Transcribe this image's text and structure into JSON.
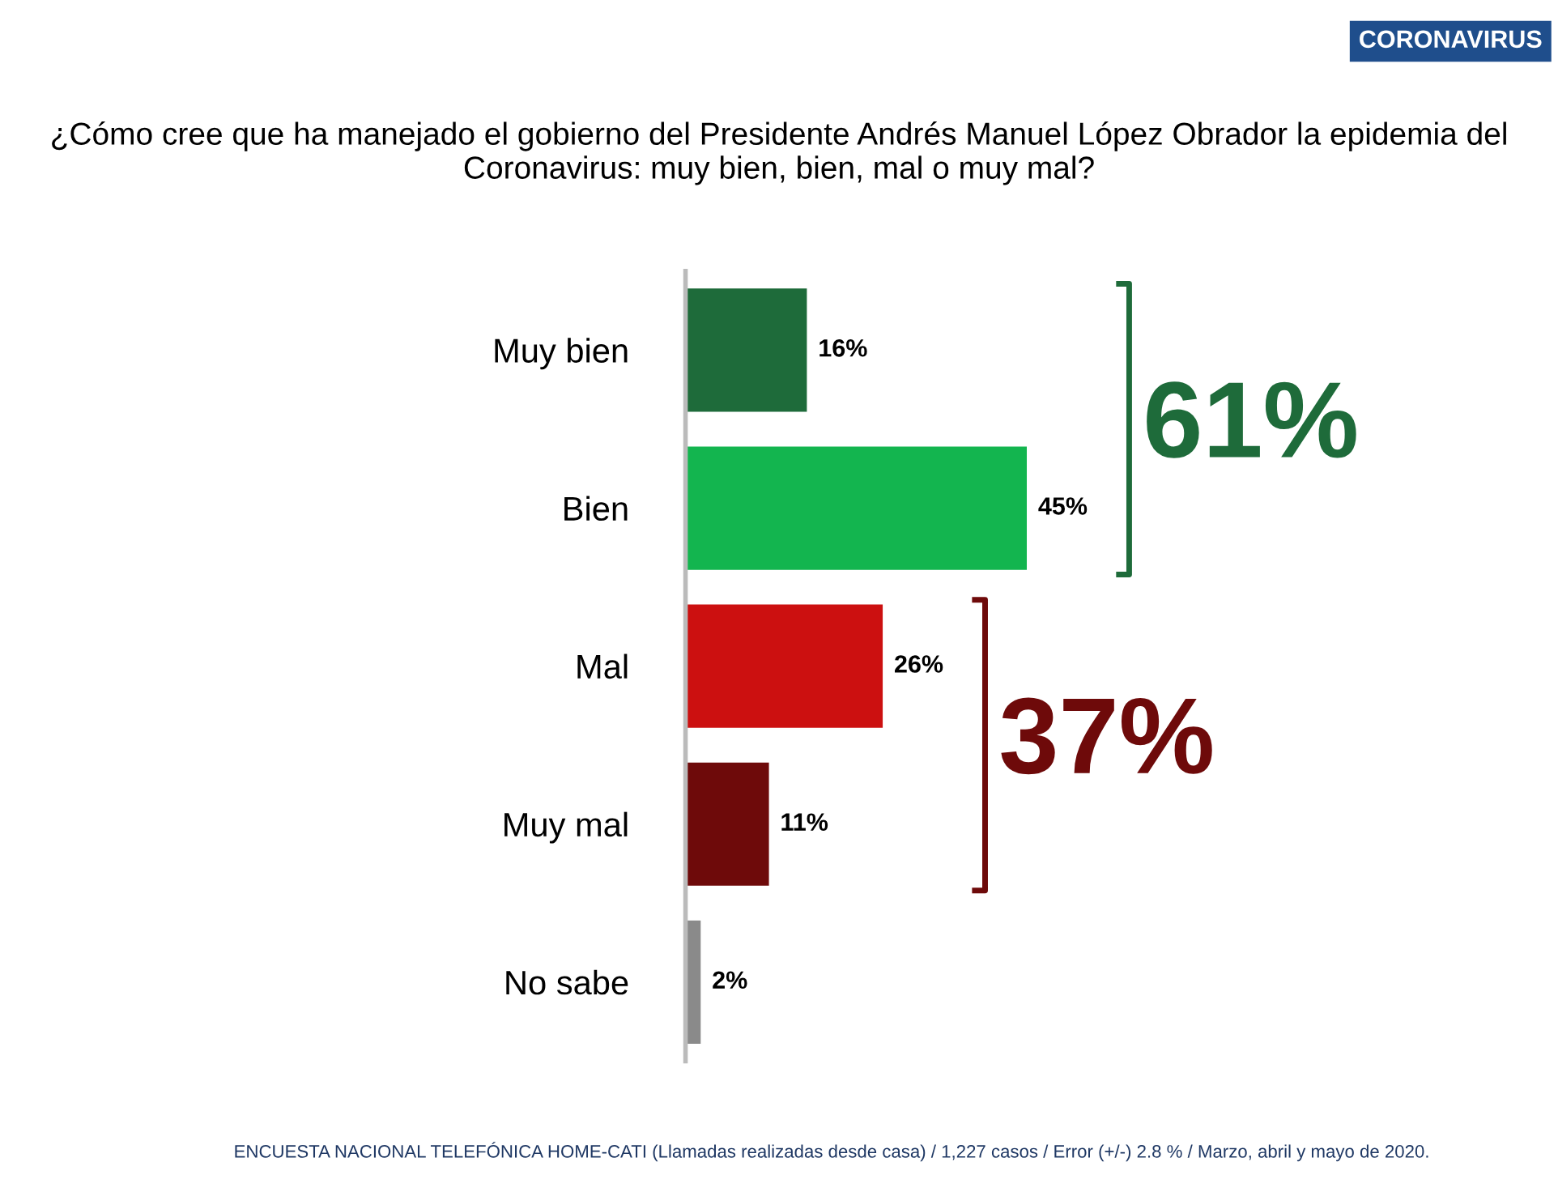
{
  "chart_data": {
    "type": "bar",
    "orientation": "horizontal",
    "title": "¿Cómo cree que ha manejado el gobierno del Presidente Andrés Manuel López Obrador la epidemia del Coronavirus: muy bien, bien, mal o muy mal?",
    "categories": [
      "Muy bien",
      "Bien",
      "Mal",
      "Muy mal",
      "No sabe"
    ],
    "values": [
      16,
      45,
      26,
      11,
      2
    ],
    "colors": [
      "#1e6b3a",
      "#13b54f",
      "#cc1010",
      "#6e0a0a",
      "#8a8a8a"
    ],
    "data_labels": true,
    "value_labels": [
      "16%",
      "45%",
      "26%",
      "11%",
      "2%"
    ],
    "annotations": [
      "CORONAVIRUS",
      "61%",
      "37%",
      "ENCUESTA NACIONAL TELEFÓNICA HOME-CATI (Llamadas realizadas desde casa) / 1,227 casos / Error (+/-) 2.8 % / Marzo, abril y mayo de 2020."
    ],
    "grid": false,
    "legend": false
  }
}
